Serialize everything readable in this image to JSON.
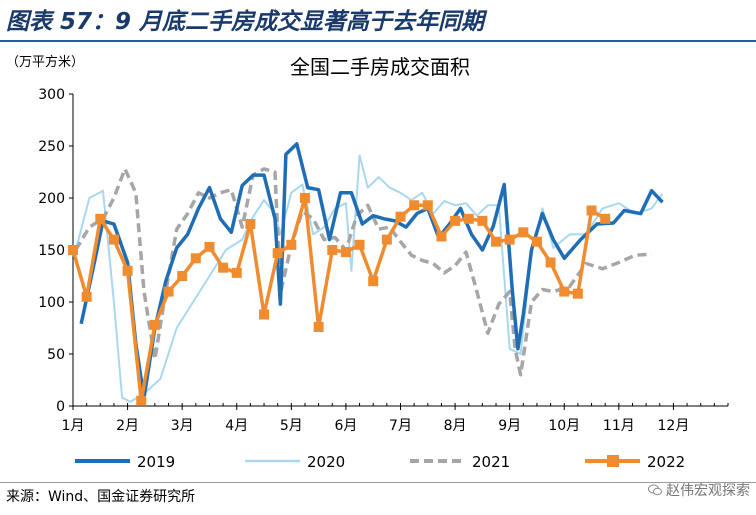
{
  "figure_title": "图表 57：9 月底二手房成交显著高于去年同期",
  "source_text": "来源：Wind、国金证券研究所",
  "watermark": "赵伟宏观探索",
  "chart_data": {
    "type": "line",
    "title": "全国二手房成交面积",
    "ylabel": "（万平方米）",
    "xlabel": "",
    "ylim": [
      0,
      300
    ],
    "yticks": [
      0,
      50,
      100,
      150,
      200,
      250,
      300
    ],
    "xlim": [
      1,
      13
    ],
    "xticks": [
      1,
      2,
      3,
      4,
      5,
      6,
      7,
      8,
      9,
      10,
      11,
      12
    ],
    "xtick_labels": [
      "1月",
      "2月",
      "3月",
      "4月",
      "5月",
      "6月",
      "7月",
      "8月",
      "9月",
      "10月",
      "11月",
      "12月"
    ],
    "legend_position": "bottom",
    "grid": false,
    "series": [
      {
        "name": "2019",
        "color": "#1f6db5",
        "style": "solid",
        "points": [
          [
            1.15,
            79
          ],
          [
            1.4,
            140
          ],
          [
            1.55,
            178
          ],
          [
            1.75,
            175
          ],
          [
            2.0,
            138
          ],
          [
            2.15,
            60
          ],
          [
            2.3,
            8
          ],
          [
            2.5,
            75
          ],
          [
            2.7,
            120
          ],
          [
            2.9,
            152
          ],
          [
            3.1,
            165
          ],
          [
            3.3,
            190
          ],
          [
            3.5,
            210
          ],
          [
            3.7,
            180
          ],
          [
            3.9,
            167
          ],
          [
            4.1,
            212
          ],
          [
            4.3,
            222
          ],
          [
            4.5,
            222
          ],
          [
            4.7,
            180
          ],
          [
            4.8,
            98
          ],
          [
            4.9,
            242
          ],
          [
            5.1,
            252
          ],
          [
            5.3,
            210
          ],
          [
            5.5,
            208
          ],
          [
            5.7,
            160
          ],
          [
            5.9,
            205
          ],
          [
            6.1,
            205
          ],
          [
            6.3,
            175
          ],
          [
            6.5,
            183
          ],
          [
            6.7,
            180
          ],
          [
            6.9,
            178
          ],
          [
            7.1,
            172
          ],
          [
            7.3,
            185
          ],
          [
            7.5,
            190
          ],
          [
            7.7,
            162
          ],
          [
            7.9,
            175
          ],
          [
            8.1,
            190
          ],
          [
            8.3,
            165
          ],
          [
            8.5,
            150
          ],
          [
            8.7,
            173
          ],
          [
            8.9,
            213
          ],
          [
            9.05,
            110
          ],
          [
            9.15,
            55
          ],
          [
            9.25,
            88
          ],
          [
            9.4,
            150
          ],
          [
            9.6,
            185
          ],
          [
            9.8,
            160
          ],
          [
            10.0,
            142
          ],
          [
            10.3,
            160
          ],
          [
            10.6,
            175
          ],
          [
            10.9,
            176
          ],
          [
            11.1,
            188
          ],
          [
            11.4,
            185
          ],
          [
            11.6,
            207
          ],
          [
            11.8,
            196
          ]
        ]
      },
      {
        "name": "2020",
        "color": "#a8d8f0",
        "style": "solid",
        "points": [
          [
            1.05,
            150
          ],
          [
            1.3,
            200
          ],
          [
            1.55,
            207
          ],
          [
            1.75,
            100
          ],
          [
            1.9,
            8
          ],
          [
            2.05,
            4
          ],
          [
            2.3,
            12
          ],
          [
            2.6,
            26
          ],
          [
            2.9,
            75
          ],
          [
            3.2,
            100
          ],
          [
            3.5,
            125
          ],
          [
            3.8,
            150
          ],
          [
            4.1,
            160
          ],
          [
            4.3,
            182
          ],
          [
            4.5,
            198
          ],
          [
            4.7,
            185
          ],
          [
            4.8,
            165
          ],
          [
            5.0,
            205
          ],
          [
            5.2,
            213
          ],
          [
            5.4,
            165
          ],
          [
            5.6,
            172
          ],
          [
            5.8,
            190
          ],
          [
            6.0,
            195
          ],
          [
            6.1,
            130
          ],
          [
            6.25,
            241
          ],
          [
            6.4,
            210
          ],
          [
            6.6,
            220
          ],
          [
            6.8,
            210
          ],
          [
            7.0,
            205
          ],
          [
            7.2,
            198
          ],
          [
            7.4,
            205
          ],
          [
            7.6,
            185
          ],
          [
            7.8,
            197
          ],
          [
            8.0,
            193
          ],
          [
            8.2,
            195
          ],
          [
            8.4,
            183
          ],
          [
            8.6,
            193
          ],
          [
            8.8,
            193
          ],
          [
            9.0,
            55
          ],
          [
            9.2,
            50
          ],
          [
            9.4,
            147
          ],
          [
            9.6,
            190
          ],
          [
            9.8,
            152
          ],
          [
            10.1,
            165
          ],
          [
            10.4,
            165
          ],
          [
            10.7,
            190
          ],
          [
            11.0,
            195
          ],
          [
            11.3,
            185
          ],
          [
            11.6,
            190
          ],
          [
            11.8,
            204
          ]
        ]
      },
      {
        "name": "2021",
        "color": "#a6a6a6",
        "style": "dashed",
        "points": [
          [
            1.05,
            150
          ],
          [
            1.3,
            172
          ],
          [
            1.55,
            180
          ],
          [
            1.75,
            200
          ],
          [
            1.95,
            228
          ],
          [
            2.15,
            205
          ],
          [
            2.3,
            110
          ],
          [
            2.5,
            45
          ],
          [
            2.7,
            110
          ],
          [
            2.9,
            170
          ],
          [
            3.1,
            185
          ],
          [
            3.3,
            205
          ],
          [
            3.5,
            200
          ],
          [
            3.7,
            205
          ],
          [
            3.9,
            208
          ],
          [
            4.1,
            172
          ],
          [
            4.3,
            222
          ],
          [
            4.5,
            228
          ],
          [
            4.7,
            225
          ],
          [
            4.8,
            108
          ],
          [
            5.0,
            155
          ],
          [
            5.2,
            187
          ],
          [
            5.4,
            180
          ],
          [
            5.6,
            160
          ],
          [
            5.8,
            162
          ],
          [
            6.0,
            150
          ],
          [
            6.2,
            183
          ],
          [
            6.4,
            193
          ],
          [
            6.6,
            170
          ],
          [
            6.8,
            172
          ],
          [
            7.0,
            158
          ],
          [
            7.2,
            145
          ],
          [
            7.4,
            140
          ],
          [
            7.6,
            137
          ],
          [
            7.8,
            128
          ],
          [
            8.0,
            135
          ],
          [
            8.2,
            148
          ],
          [
            8.4,
            110
          ],
          [
            8.6,
            70
          ],
          [
            8.8,
            98
          ],
          [
            9.0,
            110
          ],
          [
            9.1,
            55
          ],
          [
            9.2,
            30
          ],
          [
            9.4,
            100
          ],
          [
            9.6,
            112
          ],
          [
            9.8,
            110
          ],
          [
            10.1,
            115
          ],
          [
            10.4,
            137
          ],
          [
            10.7,
            132
          ],
          [
            11.0,
            138
          ],
          [
            11.3,
            145
          ],
          [
            11.6,
            146
          ]
        ]
      },
      {
        "name": "2022",
        "color": "#f08c30",
        "style": "solid",
        "markers": "square",
        "points": [
          [
            1.0,
            150
          ],
          [
            1.25,
            105
          ],
          [
            1.5,
            180
          ],
          [
            1.75,
            160
          ],
          [
            2.0,
            130
          ],
          [
            2.25,
            5
          ],
          [
            2.5,
            78
          ],
          [
            2.75,
            110
          ],
          [
            3.0,
            125
          ],
          [
            3.25,
            142
          ],
          [
            3.5,
            153
          ],
          [
            3.75,
            133
          ],
          [
            4.0,
            128
          ],
          [
            4.25,
            175
          ],
          [
            4.5,
            88
          ],
          [
            4.75,
            147
          ],
          [
            5.0,
            155
          ],
          [
            5.25,
            200
          ],
          [
            5.5,
            76
          ],
          [
            5.75,
            150
          ],
          [
            6.0,
            148
          ],
          [
            6.25,
            155
          ],
          [
            6.5,
            120
          ],
          [
            6.75,
            160
          ],
          [
            7.0,
            182
          ],
          [
            7.25,
            193
          ],
          [
            7.5,
            193
          ],
          [
            7.75,
            163
          ],
          [
            8.0,
            178
          ],
          [
            8.25,
            180
          ],
          [
            8.5,
            178
          ],
          [
            8.75,
            158
          ],
          [
            9.0,
            160
          ],
          [
            9.25,
            167
          ],
          [
            9.5,
            158
          ],
          [
            9.75,
            138
          ],
          [
            10.0,
            110
          ],
          [
            10.25,
            108
          ],
          [
            10.5,
            188
          ],
          [
            10.75,
            180
          ]
        ]
      }
    ]
  }
}
